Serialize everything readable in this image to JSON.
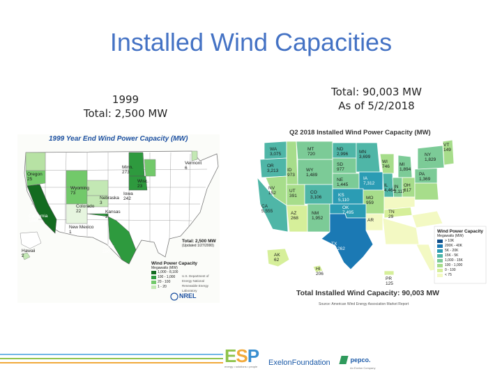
{
  "slide": {
    "title": "Installed Wind Capacities",
    "left_caption": {
      "line1": "1999",
      "line2": "Total: 2,500 MW"
    },
    "right_caption": {
      "line1": "Total: 90,003 MW",
      "line2": "As of 5/2/2018"
    }
  },
  "map_1999": {
    "title": "1999 Year End Wind Power Capacity (MW)",
    "states": [
      {
        "name": "Vermont",
        "value": "6"
      },
      {
        "name": "Oregon",
        "value": "25"
      },
      {
        "name": "Minn.",
        "value": "273"
      },
      {
        "name": "Wisc.",
        "value": "23"
      },
      {
        "name": "Wyoming",
        "value": "73"
      },
      {
        "name": "Nebraska",
        "value": "3"
      },
      {
        "name": "Iowa",
        "value": "242"
      },
      {
        "name": "Colorado",
        "value": "22"
      },
      {
        "name": "Kansas",
        "value": "2"
      },
      {
        "name": "California",
        "value": "1646"
      },
      {
        "name": "New Mexico",
        "value": "1"
      },
      {
        "name": "Texas",
        "value": "180"
      },
      {
        "name": "Hawaii",
        "value": "2"
      }
    ],
    "total_line1": "Total: 2,500 MW",
    "total_line2": "(Updated 1/27/2000)",
    "legend_title": "Wind Power Capacity",
    "legend_subtitle": "Megawatts (MW)",
    "legend": [
      {
        "range": "1,000 - 8,100",
        "color": "#136b20"
      },
      {
        "range": "100 - 1,000",
        "color": "#2e9a3e"
      },
      {
        "range": "20 - 100",
        "color": "#72c96a"
      },
      {
        "range": "1 - 20",
        "color": "#c3e8b4"
      }
    ],
    "logo": "NREL",
    "credit": "U.S. Department of Energy National Renewable Energy Laboratory"
  },
  "map_2018": {
    "title": "Q2 2018 Installed Wind Power Capacity (MW)",
    "states": [
      {
        "name": "WA",
        "value": "3,075"
      },
      {
        "name": "MT",
        "value": "720"
      },
      {
        "name": "ND",
        "value": "2,996"
      },
      {
        "name": "MN",
        "value": "3,699"
      },
      {
        "name": "OR",
        "value": "3,213"
      },
      {
        "name": "ID",
        "value": "973"
      },
      {
        "name": "SD",
        "value": "977"
      },
      {
        "name": "WI",
        "value": "746"
      },
      {
        "name": "MI",
        "value": "1,894"
      },
      {
        "name": "NY",
        "value": "1,829"
      },
      {
        "name": "VT",
        "value": "149"
      },
      {
        "name": "WY",
        "value": "1,489"
      },
      {
        "name": "NE",
        "value": "1,445"
      },
      {
        "name": "IA",
        "value": "7,312"
      },
      {
        "name": "IL",
        "value": "4,464"
      },
      {
        "name": "IN",
        "value": "2,117"
      },
      {
        "name": "OH",
        "value": "617"
      },
      {
        "name": "PA",
        "value": "1,369"
      },
      {
        "name": "NV",
        "value": "152"
      },
      {
        "name": "UT",
        "value": "391"
      },
      {
        "name": "CO",
        "value": "3,106"
      },
      {
        "name": "KS",
        "value": "5,110"
      },
      {
        "name": "MO",
        "value": "959"
      },
      {
        "name": "CA",
        "value": "5,555"
      },
      {
        "name": "AZ",
        "value": "268"
      },
      {
        "name": "NM",
        "value": "1,952"
      },
      {
        "name": "OK",
        "value": "7,495"
      },
      {
        "name": "AR",
        "value": ""
      },
      {
        "name": "TN",
        "value": "29"
      },
      {
        "name": "TX",
        "value": "23,262"
      },
      {
        "name": "AK",
        "value": "62"
      },
      {
        "name": "HI",
        "value": "206"
      },
      {
        "name": "PR",
        "value": "125"
      }
    ],
    "legend_title": "Wind Power Capacity",
    "legend_subtitle": "Megawatts (MW)",
    "legend": [
      {
        "range": "> 10K",
        "color": "#0f4e8a"
      },
      {
        "range": "200K - 40K",
        "color": "#1b79b4"
      },
      {
        "range": "5K - 20K",
        "color": "#2b9cb4"
      },
      {
        "range": "15K - 5K",
        "color": "#4fb6a7"
      },
      {
        "range": "1,000 - 15K",
        "color": "#7ccb97"
      },
      {
        "range": "100 - 1,000",
        "color": "#a7dd8b"
      },
      {
        "range": "0 - 100",
        "color": "#d6ef9a"
      },
      {
        "range": "< 75",
        "color": "#f3f9c3"
      }
    ],
    "total_text": "Total Installed Wind Capacity: 90,003 MW",
    "source": "Source: American Wind Energy Association Market Report"
  },
  "footer": {
    "esp_logo": "ESP",
    "esp_tagline": "energy • solutions • people",
    "exelon": "ExelonFoundation",
    "pepco": "pepco.",
    "pepco_tagline": "An Exelon Company",
    "bar_colors": [
      "#6fb6e5",
      "#8ec34a",
      "#f1a93a"
    ]
  },
  "colors": {
    "title": "#4472c4"
  }
}
